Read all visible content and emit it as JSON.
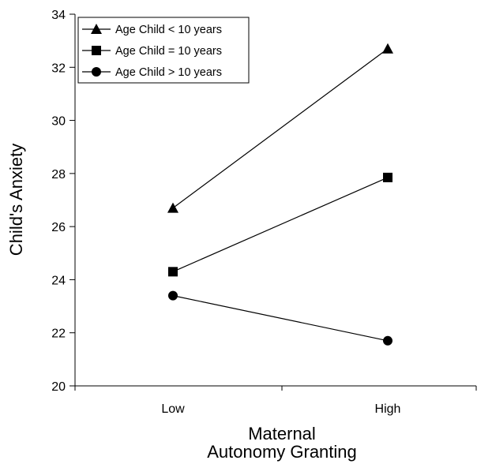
{
  "chart_data": {
    "type": "line",
    "xlabel_lines": [
      "Maternal",
      "Autonomy Granting"
    ],
    "ylabel": "Child's Anxiety",
    "categories": [
      "Low",
      "High"
    ],
    "ylim": [
      20,
      34
    ],
    "yticks": [
      "20",
      "22",
      "24",
      "26",
      "28",
      "30",
      "32",
      "34"
    ],
    "grid": false,
    "legend_position": "top-left",
    "series": [
      {
        "name": "Age Child < 10 years",
        "marker": "triangle",
        "values": [
          26.7,
          32.7
        ]
      },
      {
        "name": "Age Child = 10 years",
        "marker": "square",
        "values": [
          24.3,
          27.85
        ]
      },
      {
        "name": "Age Child > 10 years",
        "marker": "circle",
        "values": [
          23.4,
          21.7
        ]
      }
    ]
  }
}
